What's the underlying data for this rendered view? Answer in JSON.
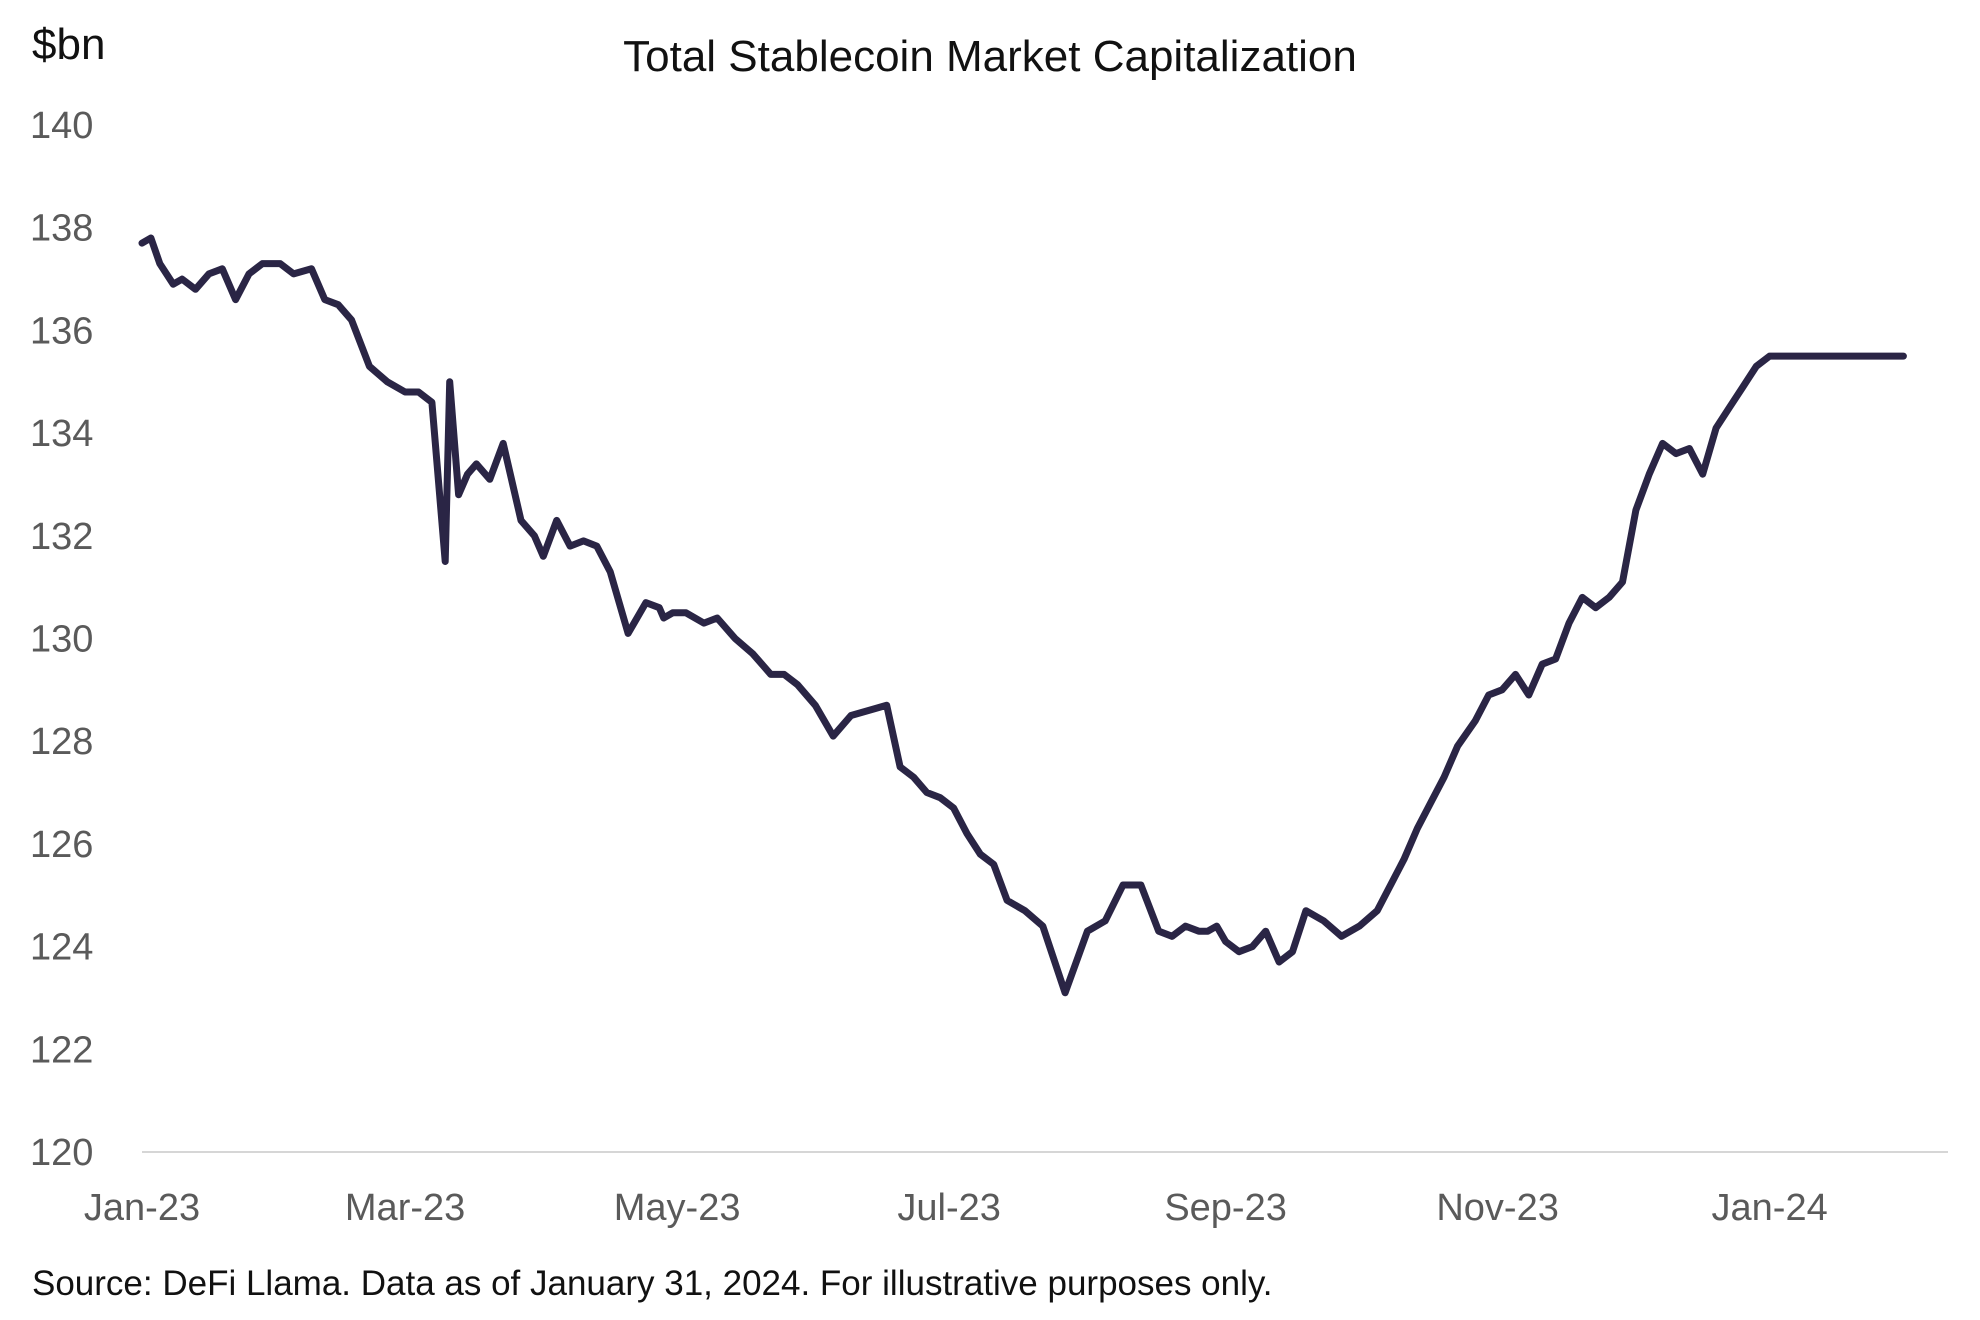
{
  "chart_data": {
    "type": "line",
    "title": "Total Stablecoin Market Capitalization",
    "ylabel": "$bn",
    "xlabel": "",
    "ylim": [
      120,
      140
    ],
    "yticks": [
      120,
      122,
      124,
      126,
      128,
      130,
      132,
      134,
      136,
      138,
      140
    ],
    "xticks": [
      "Jan-23",
      "Mar-23",
      "May-23",
      "Jul-23",
      "Sep-23",
      "Nov-23",
      "Jan-24"
    ],
    "xlim": [
      "2023-01-01",
      "2024-02-10"
    ],
    "grid": false,
    "line_color": "#2a2545",
    "series": [
      {
        "x": [
          "2023-01-01",
          "2023-01-03",
          "2023-01-05",
          "2023-01-08",
          "2023-01-10",
          "2023-01-13",
          "2023-01-16",
          "2023-01-19",
          "2023-01-22",
          "2023-01-25",
          "2023-01-28",
          "2023-02-01",
          "2023-02-04",
          "2023-02-08",
          "2023-02-11",
          "2023-02-14",
          "2023-02-17",
          "2023-02-21",
          "2023-02-25",
          "2023-03-01",
          "2023-03-04",
          "2023-03-07",
          "2023-03-10",
          "2023-03-11",
          "2023-03-13",
          "2023-03-15",
          "2023-03-17",
          "2023-03-20",
          "2023-03-23",
          "2023-03-27",
          "2023-03-30",
          "2023-04-01",
          "2023-04-04",
          "2023-04-07",
          "2023-04-10",
          "2023-04-13",
          "2023-04-16",
          "2023-04-20",
          "2023-04-24",
          "2023-04-27",
          "2023-04-28",
          "2023-04-30",
          "2023-05-03",
          "2023-05-07",
          "2023-05-10",
          "2023-05-14",
          "2023-05-18",
          "2023-05-22",
          "2023-05-25",
          "2023-05-28",
          "2023-06-01",
          "2023-06-05",
          "2023-06-09",
          "2023-06-13",
          "2023-06-17",
          "2023-06-20",
          "2023-06-23",
          "2023-06-26",
          "2023-06-29",
          "2023-07-02",
          "2023-07-05",
          "2023-07-08",
          "2023-07-11",
          "2023-07-14",
          "2023-07-18",
          "2023-07-22",
          "2023-07-27",
          "2023-08-01",
          "2023-08-05",
          "2023-08-09",
          "2023-08-13",
          "2023-08-17",
          "2023-08-20",
          "2023-08-23",
          "2023-08-26",
          "2023-08-28",
          "2023-08-30",
          "2023-09-01",
          "2023-09-04",
          "2023-09-07",
          "2023-09-10",
          "2023-09-13",
          "2023-09-16",
          "2023-09-19",
          "2023-09-23",
          "2023-09-27",
          "2023-10-01",
          "2023-10-05",
          "2023-10-08",
          "2023-10-11",
          "2023-10-14",
          "2023-10-17",
          "2023-10-20",
          "2023-10-23",
          "2023-10-27",
          "2023-10-30",
          "2023-11-02",
          "2023-11-05",
          "2023-11-08",
          "2023-11-11",
          "2023-11-14",
          "2023-11-17",
          "2023-11-20",
          "2023-11-23",
          "2023-11-26",
          "2023-11-29",
          "2023-12-02",
          "2023-12-05",
          "2023-12-08",
          "2023-12-11",
          "2023-12-14",
          "2023-12-17",
          "2023-12-20",
          "2023-12-23",
          "2023-12-26",
          "2023-12-29",
          "2024-01-01",
          "2024-01-04",
          "2024-01-07",
          "2024-01-09",
          "2024-01-11",
          "2024-01-13",
          "2024-01-15",
          "2024-01-18",
          "2024-01-21",
          "2024-01-24",
          "2024-01-27",
          "2024-01-29",
          "2024-01-31"
        ],
        "values": [
          137.7,
          137.8,
          137.3,
          136.9,
          137.0,
          136.8,
          137.1,
          137.2,
          136.6,
          137.1,
          137.3,
          137.3,
          137.1,
          137.2,
          136.6,
          136.5,
          136.2,
          135.3,
          135.0,
          134.8,
          134.8,
          134.6,
          131.5,
          135.0,
          132.8,
          133.2,
          133.4,
          133.1,
          133.8,
          132.3,
          132.0,
          131.6,
          132.3,
          131.8,
          131.9,
          131.8,
          131.3,
          130.1,
          130.7,
          130.6,
          130.4,
          130.5,
          130.5,
          130.3,
          130.4,
          130.0,
          129.7,
          129.3,
          129.3,
          129.1,
          128.7,
          128.1,
          128.5,
          128.6,
          128.7,
          127.5,
          127.3,
          127.0,
          126.9,
          126.7,
          126.2,
          125.8,
          125.6,
          124.9,
          124.7,
          124.4,
          123.1,
          124.3,
          124.5,
          125.2,
          125.2,
          124.3,
          124.2,
          124.4,
          124.3,
          124.3,
          124.4,
          124.1,
          123.9,
          124.0,
          124.3,
          123.7,
          123.9,
          124.7,
          124.5,
          124.2,
          124.4,
          124.7,
          125.2,
          125.7,
          126.3,
          126.8,
          127.3,
          127.9,
          128.4,
          128.9,
          129.0,
          129.3,
          128.9,
          129.5,
          129.6,
          130.3,
          130.8,
          130.6,
          130.8,
          131.1,
          132.5,
          133.2,
          133.8,
          133.6,
          133.7,
          133.2,
          134.1,
          134.5,
          134.9,
          135.3,
          135.5,
          135.5,
          135.5,
          135.5,
          135.5,
          135.5,
          135.5,
          135.5,
          135.5,
          135.5,
          135.5,
          135.5,
          135.5
        ]
      }
    ]
  },
  "source_note": "Source: DeFi Llama. Data as of January 31, 2024. For illustrative purposes only."
}
